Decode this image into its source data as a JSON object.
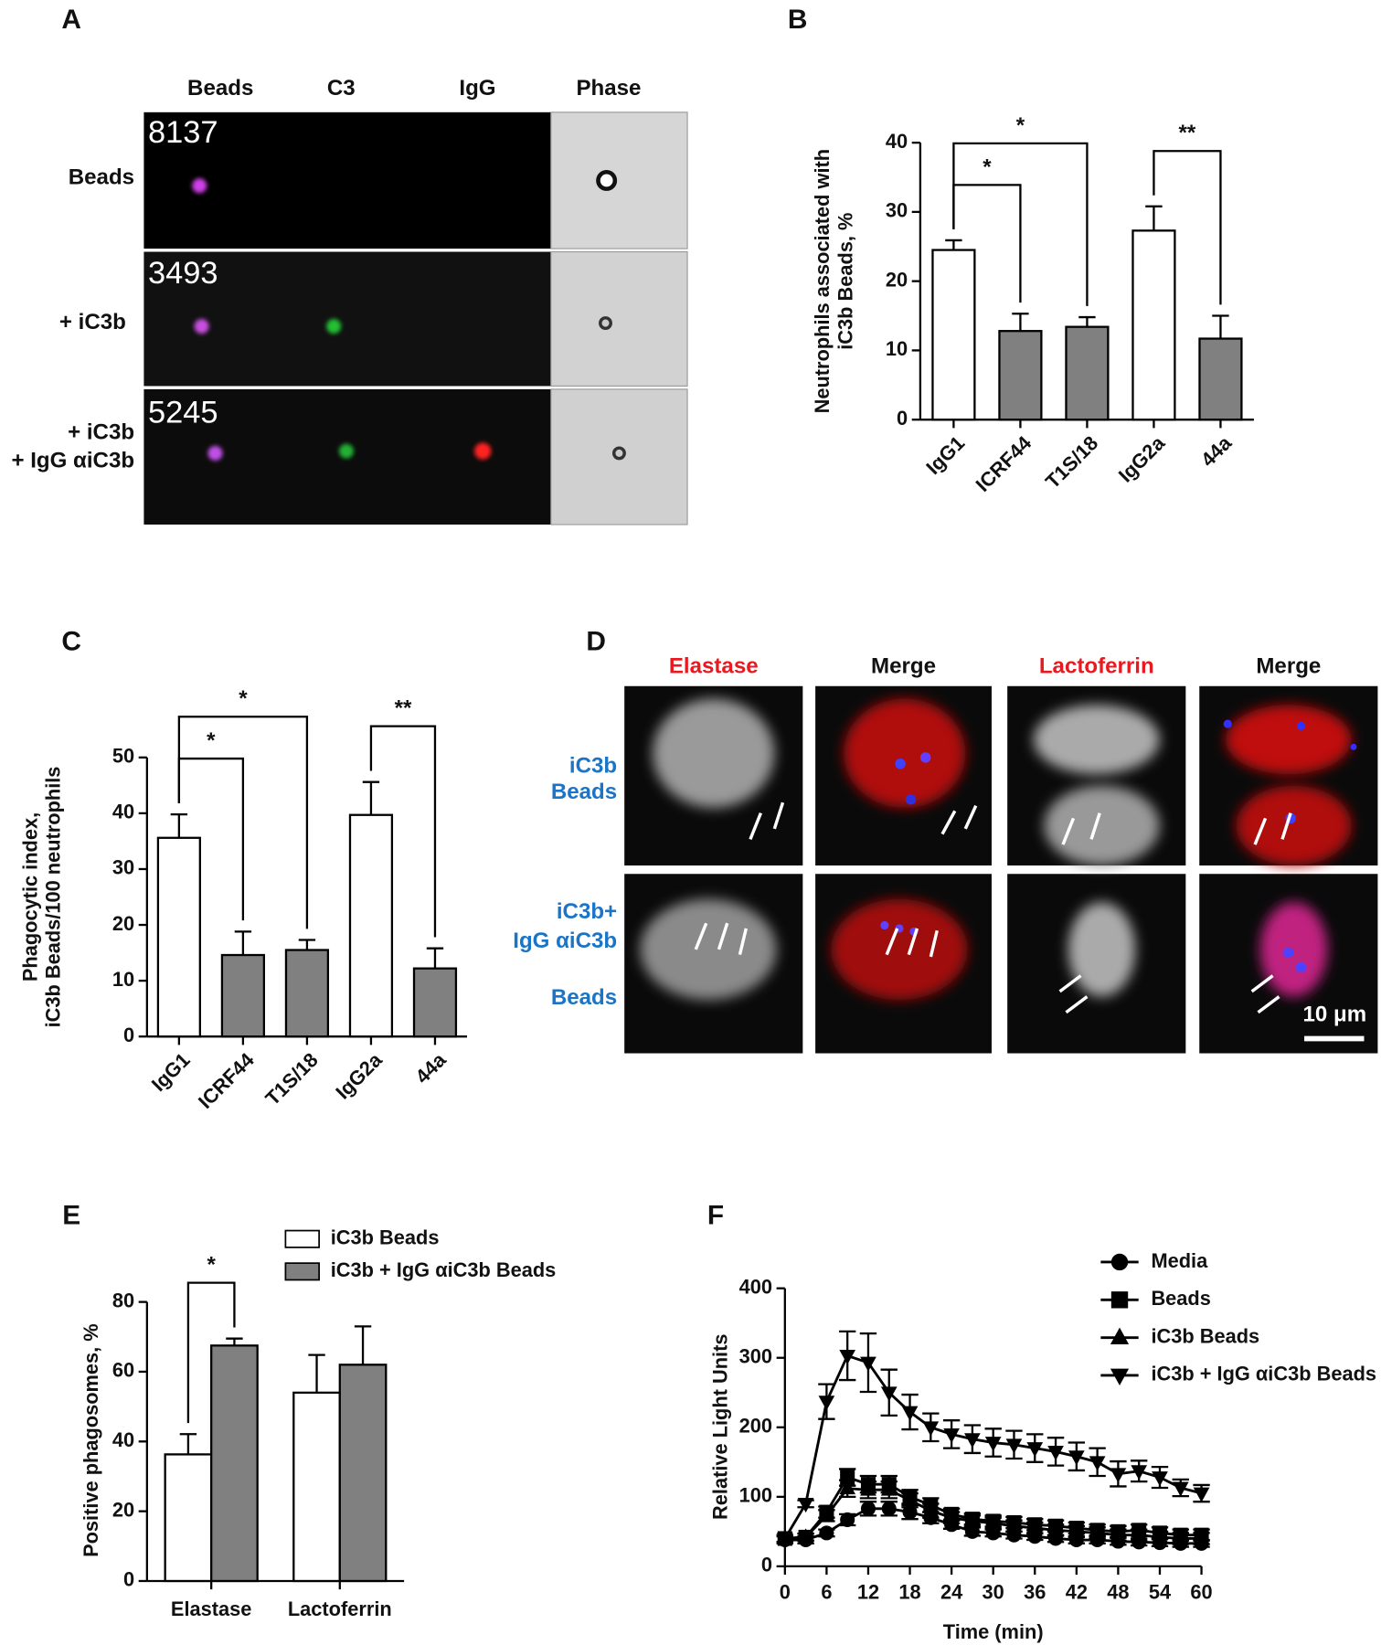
{
  "panel_a": {
    "label": "A",
    "columns": [
      "Beads",
      "C3",
      "IgG",
      "Phase"
    ],
    "rows": [
      {
        "label": [
          "Beads"
        ],
        "count": 8137
      },
      {
        "label": [
          "+ iC3b"
        ],
        "count": 3493
      },
      {
        "label": [
          "+ iC3b",
          "+ IgG αiC3b"
        ],
        "count": 5245
      }
    ]
  },
  "panel_d": {
    "label": "D",
    "columns": [
      "Elastase",
      "Merge",
      "Lactoferrin",
      "Merge"
    ],
    "rows": [
      [
        "iC3b",
        "Beads"
      ],
      [
        "iC3b+",
        "IgG αiC3b",
        "Beads"
      ]
    ],
    "scale_bar": "10 μm"
  },
  "chart_data": [
    {
      "type": "bar",
      "panel": "B",
      "ylabel": [
        "Neutrophils associated with",
        "iC3b Beads, %"
      ],
      "categories": [
        "IgG1",
        "ICRF44",
        "T1S/18",
        "IgG2a",
        "44a"
      ],
      "values": [
        24.5,
        12.8,
        13.4,
        27.3,
        11.7
      ],
      "errors": [
        1.4,
        2.5,
        1.4,
        3.5,
        3.3
      ],
      "colors": [
        "#ffffff",
        "#808080",
        "#808080",
        "#ffffff",
        "#808080"
      ],
      "ylim": [
        0,
        40
      ],
      "yticks": [
        0,
        10,
        20,
        30,
        40
      ],
      "significance": [
        {
          "between": [
            0,
            1
          ],
          "label": "*"
        },
        {
          "between": [
            0,
            2
          ],
          "label": "*"
        },
        {
          "between": [
            3,
            4
          ],
          "label": "**"
        }
      ]
    },
    {
      "type": "bar",
      "panel": "C",
      "ylabel": [
        "Phagocytic index,",
        "iC3b Beads/100 neutrophils"
      ],
      "categories": [
        "IgG1",
        "ICRF44",
        "T1S/18",
        "IgG2a",
        "44a"
      ],
      "values": [
        35.6,
        14.6,
        15.5,
        39.7,
        12.2
      ],
      "errors": [
        4.2,
        4.2,
        1.8,
        5.9,
        3.6
      ],
      "colors": [
        "#ffffff",
        "#808080",
        "#808080",
        "#ffffff",
        "#808080"
      ],
      "ylim": [
        0,
        50
      ],
      "yticks": [
        0,
        10,
        20,
        30,
        40,
        50
      ],
      "significance": [
        {
          "between": [
            0,
            1
          ],
          "label": "*"
        },
        {
          "between": [
            0,
            2
          ],
          "label": "*"
        },
        {
          "between": [
            3,
            4
          ],
          "label": "**"
        }
      ]
    },
    {
      "type": "bar",
      "panel": "E",
      "ylabel": [
        "Positive phagosomes, %"
      ],
      "categories": [
        "Elastase",
        "Lactoferrin"
      ],
      "series": [
        {
          "name": "iC3b Beads",
          "color": "#ffffff",
          "values": [
            36.3,
            54
          ],
          "errors": [
            5.8,
            10.8
          ]
        },
        {
          "name": "iC3b + IgG αiC3b Beads",
          "color": "#808080",
          "values": [
            67.5,
            62
          ],
          "errors": [
            2,
            11
          ]
        }
      ],
      "ylim": [
        0,
        80
      ],
      "yticks": [
        0,
        20,
        40,
        60,
        80
      ],
      "significance": [
        {
          "category": 0,
          "between": [
            0,
            1
          ],
          "label": "*"
        }
      ]
    },
    {
      "type": "line",
      "panel": "F",
      "xlabel": "Time (min)",
      "ylabel": [
        "Relative Light Units"
      ],
      "x": [
        0,
        3,
        6,
        9,
        12,
        15,
        18,
        21,
        24,
        27,
        30,
        33,
        36,
        39,
        42,
        45,
        48,
        51,
        54,
        57,
        60
      ],
      "series": [
        {
          "name": "Media",
          "color": "#000000",
          "marker": "circle",
          "values": [
            38,
            38,
            48,
            67,
            83,
            83,
            78,
            70,
            60,
            50,
            48,
            45,
            43,
            40,
            38,
            38,
            36,
            35,
            34,
            33,
            33
          ],
          "errors": [
            5,
            5,
            5,
            8,
            10,
            10,
            10,
            8,
            6,
            6,
            5,
            5,
            5,
            5,
            5,
            5,
            5,
            5,
            5,
            5,
            5
          ]
        },
        {
          "name": "Beads",
          "color": "#000000",
          "marker": "square",
          "values": [
            40,
            42,
            78,
            128,
            118,
            118,
            100,
            88,
            75,
            68,
            65,
            63,
            60,
            58,
            55,
            52,
            50,
            52,
            48,
            45,
            45
          ],
          "errors": [
            5,
            5,
            8,
            12,
            12,
            12,
            10,
            10,
            8,
            8,
            8,
            8,
            8,
            8,
            8,
            8,
            8,
            8,
            8,
            8,
            8
          ]
        },
        {
          "name": "iC3b Beads",
          "color": "#000000",
          "marker": "triangle-up",
          "values": [
            40,
            42,
            73,
            112,
            110,
            110,
            95,
            80,
            70,
            65,
            62,
            58,
            55,
            52,
            50,
            48,
            45,
            45,
            42,
            40,
            40
          ],
          "errors": [
            5,
            5,
            8,
            12,
            12,
            12,
            10,
            10,
            8,
            8,
            8,
            8,
            8,
            8,
            8,
            8,
            8,
            8,
            8,
            8,
            8
          ]
        },
        {
          "name": "iC3b + IgG αiC3b Beads",
          "color": "#000000",
          "marker": "triangle-down",
          "values": [
            40,
            90,
            237,
            303,
            293,
            250,
            222,
            200,
            190,
            183,
            178,
            175,
            170,
            165,
            158,
            150,
            133,
            137,
            128,
            113,
            105
          ],
          "errors": [
            5,
            5,
            25,
            35,
            42,
            33,
            25,
            20,
            20,
            20,
            20,
            20,
            20,
            20,
            20,
            20,
            18,
            15,
            15,
            12,
            12
          ]
        }
      ],
      "xlim": [
        0,
        60
      ],
      "xticks": [
        0,
        6,
        12,
        18,
        24,
        30,
        36,
        42,
        48,
        54,
        60
      ],
      "ylim": [
        0,
        400
      ],
      "yticks": [
        0,
        100,
        200,
        300,
        400
      ]
    }
  ]
}
